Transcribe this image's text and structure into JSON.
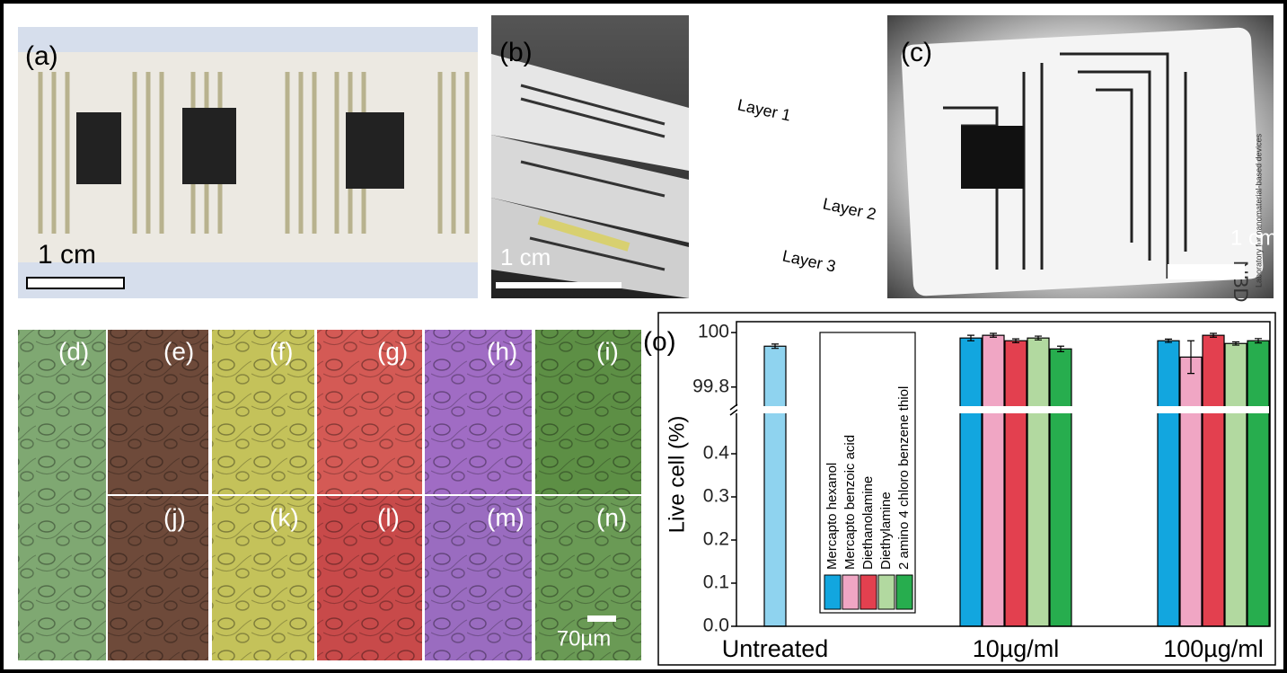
{
  "panels": {
    "a": {
      "label": "(a)",
      "scale": "1 cm"
    },
    "b": {
      "label": "(b)",
      "scale": "1 cm",
      "layers": [
        "Layer 1",
        "Layer 2",
        "Layer 3"
      ]
    },
    "c": {
      "label": "(c)",
      "scale": "1 cm",
      "card_text": [
        "NBD",
        "Laboratory for nanomaterial-based devices"
      ]
    },
    "cells": [
      "(d)",
      "(e)",
      "(f)",
      "(g)",
      "(h)",
      "(i)",
      "(j)",
      "(k)",
      "(l)",
      "(m)",
      "(n)"
    ],
    "cell_scale": "70µm"
  },
  "chart_data": {
    "type": "bar",
    "panel_label": "(o)",
    "ylabel": "Live cell (%)",
    "categories": [
      "Untreated",
      "10µg/ml",
      "100µg/ml"
    ],
    "y_segments": [
      {
        "ylim": [
          0,
          0.5
        ],
        "yticks": [
          {
            "value": 0,
            "label": "0.0"
          },
          0.1,
          0.2,
          0.3,
          0.4
        ]
      },
      {
        "ylim": [
          99.72,
          100.04
        ],
        "yticks": [
          99.8,
          100
        ]
      }
    ],
    "control": {
      "color": "#8fd3ef",
      "values": [
        99.95,
        null,
        null
      ],
      "errors": [
        0.008,
        null,
        null
      ]
    },
    "series": [
      {
        "name": "Mercapto hexanol",
        "color": "#12a6df",
        "values": [
          null,
          99.98,
          99.97
        ],
        "errors": [
          null,
          0.01,
          0.006
        ]
      },
      {
        "name": "Mercapto benzoic acid",
        "color": "#f0a6c4",
        "values": [
          null,
          99.99,
          99.91
        ],
        "errors": [
          null,
          0.007,
          0.06
        ]
      },
      {
        "name": "Diethanolamine",
        "color": "#e3404f",
        "values": [
          null,
          99.97,
          99.99
        ],
        "errors": [
          null,
          0.007,
          0.007
        ]
      },
      {
        "name": "Diethylamine",
        "color": "#b2d9a0",
        "values": [
          null,
          99.98,
          99.96
        ],
        "errors": [
          null,
          0.007,
          0.006
        ]
      },
      {
        "name": "2 amino 4 chloro benzene thiol",
        "color": "#27ad4e",
        "values": [
          null,
          99.94,
          99.97
        ],
        "errors": [
          null,
          0.01,
          0.008
        ]
      }
    ]
  }
}
